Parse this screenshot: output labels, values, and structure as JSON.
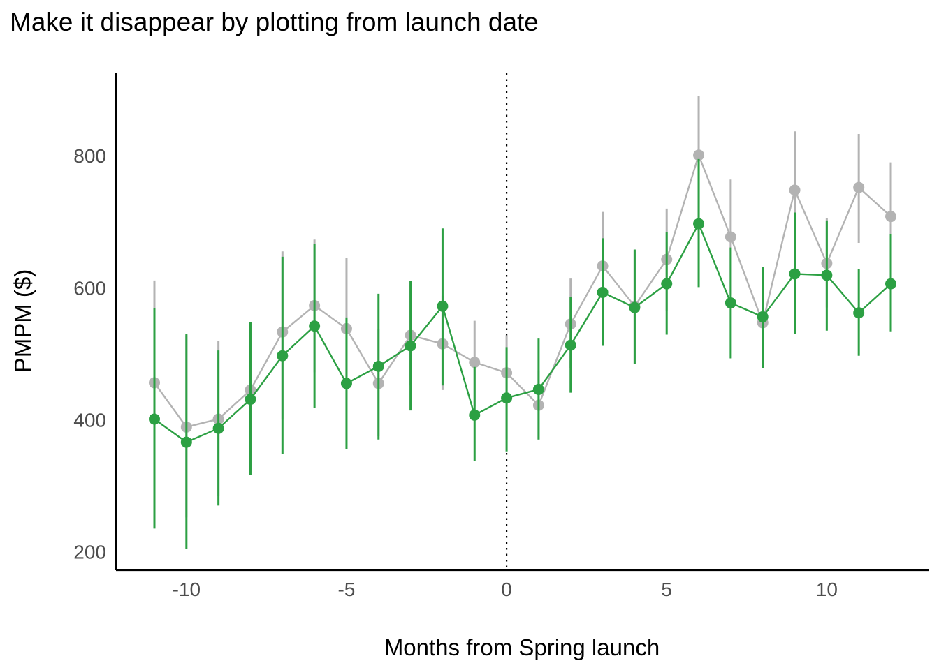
{
  "chart_data": {
    "type": "line",
    "title": "Make it disappear by plotting from launch date",
    "xlabel": "Months from Spring launch",
    "ylabel": "PMPM ($)",
    "xlim": [
      -12.2,
      13.2
    ],
    "ylim": [
      172,
      925
    ],
    "x_ticks": [
      -10,
      -5,
      0,
      5,
      10
    ],
    "y_ticks": [
      200,
      400,
      600,
      800
    ],
    "reference_line": {
      "x": 0,
      "style": "dotted"
    },
    "error_bars": true,
    "legend": "none",
    "grid": false,
    "x": [
      -11,
      -10,
      -9,
      -8,
      -7,
      -6,
      -5,
      -4,
      -3,
      -2,
      -1,
      0,
      1,
      2,
      3,
      4,
      5,
      6,
      7,
      8,
      9,
      10,
      11,
      12
    ],
    "series": [
      {
        "color": "#b3b3b3",
        "values": [
          456,
          389,
          401,
          445,
          533,
          573,
          538,
          455,
          528,
          515,
          487,
          471,
          422,
          545,
          633,
          572,
          643,
          801,
          677,
          547,
          748,
          637,
          752,
          708
        ],
        "lower": [
          300,
          252,
          285,
          320,
          400,
          472,
          430,
          375,
          452,
          445,
          420,
          370,
          370,
          478,
          550,
          485,
          565,
          705,
          590,
          480,
          662,
          570,
          668,
          627
        ],
        "upper": [
          611,
          528,
          520,
          548,
          655,
          673,
          645,
          537,
          610,
          588,
          550,
          528,
          475,
          614,
          715,
          657,
          720,
          891,
          764,
          605,
          837,
          705,
          833,
          790
        ]
      },
      {
        "color": "#2ca043",
        "values": [
          401,
          366,
          387,
          431,
          497,
          542,
          455,
          481,
          512,
          572,
          407,
          433,
          446,
          513,
          593,
          570,
          606,
          697,
          577,
          556,
          621,
          619,
          562,
          606
        ],
        "lower": [
          235,
          204,
          270,
          316,
          348,
          418,
          355,
          370,
          414,
          452,
          338,
          352,
          370,
          441,
          512,
          485,
          529,
          601,
          493,
          478,
          530,
          535,
          497,
          534
        ],
        "upper": [
          569,
          530,
          505,
          548,
          647,
          667,
          555,
          591,
          610,
          690,
          480,
          510,
          523,
          586,
          675,
          658,
          684,
          795,
          661,
          632,
          714,
          702,
          628,
          681
        ]
      }
    ]
  }
}
